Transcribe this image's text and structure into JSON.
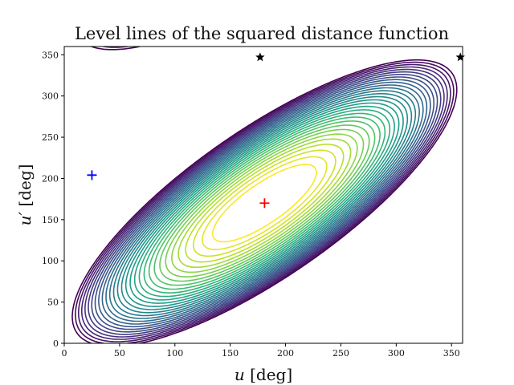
{
  "chart_data": {
    "type": "contour",
    "title": "Level lines of the squared distance function",
    "xlabel_var": "u",
    "xlabel_unit": " [deg]",
    "ylabel_var": "u′",
    "ylabel_unit": " [deg]",
    "xlim": [
      0,
      360
    ],
    "ylim": [
      0,
      360
    ],
    "xticks": [
      0,
      50,
      100,
      150,
      200,
      250,
      300,
      350
    ],
    "yticks": [
      0,
      50,
      100,
      150,
      200,
      250,
      300,
      350
    ],
    "colormap": "viridis",
    "contour": {
      "center": [
        181,
        170
      ],
      "a": [
        0.7,
        0.7
      ],
      "b": [
        0.7,
        -0.7
      ],
      "s1": 235,
      "s2": 80,
      "levels": 30,
      "min_level": 0.07,
      "max_level": 0.96
    },
    "markers": [
      {
        "name": "minimum",
        "symbol": "plus",
        "x": 181,
        "y": 170,
        "color": "#ff0000"
      },
      {
        "name": "local-point",
        "symbol": "plus",
        "x": 25,
        "y": 204,
        "color": "#0000ff"
      },
      {
        "name": "star-1",
        "symbol": "star",
        "x": 177,
        "y": 347,
        "color": "#000000"
      },
      {
        "name": "star-2",
        "symbol": "star",
        "x": 358,
        "y": 347,
        "color": "#000000"
      }
    ]
  }
}
